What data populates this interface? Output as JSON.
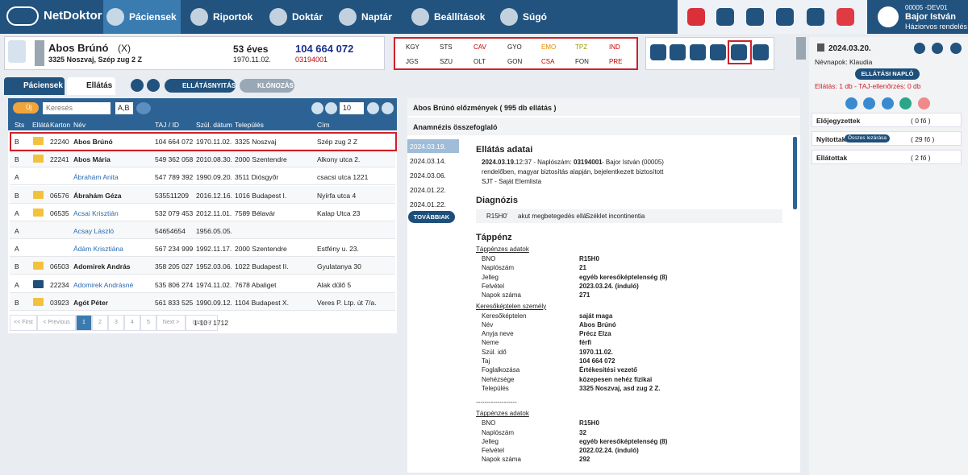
{
  "header": {
    "logo": "NetDoktor",
    "nav": [
      "Páciensek",
      "Riportok",
      "Doktár",
      "Naptár",
      "Beállítások",
      "Súgó"
    ],
    "user": {
      "code": "00005 -DEV01",
      "name": "Bajor István",
      "role": "Háziorvos rendelés"
    }
  },
  "patient": {
    "name": "Abos Brúnó",
    "mark": "(X)",
    "address": "3325 Noszvaj, Szép zug 2 Z",
    "age": "53 éves",
    "birth": "1970.11.02.",
    "taj": "104 664 072",
    "id": "03194001"
  },
  "codes": [
    [
      {
        "label": "KGY",
        "color": "#222222"
      },
      {
        "label": "STS",
        "color": "#222222"
      },
      {
        "label": "CAV",
        "color": "#c40000"
      },
      {
        "label": "GYO",
        "color": "#222222"
      },
      {
        "label": "EMO",
        "color": "#e08a00"
      },
      {
        "label": "TPZ",
        "color": "#9a9a00"
      },
      {
        "label": "IND",
        "color": "#c40000"
      }
    ],
    [
      {
        "label": "JGS",
        "color": "#222222"
      },
      {
        "label": "SZU",
        "color": "#222222"
      },
      {
        "label": "OLT",
        "color": "#222222"
      },
      {
        "label": "GON",
        "color": "#222222"
      },
      {
        "label": "CSA",
        "color": "#c40000"
      },
      {
        "label": "FON",
        "color": "#222222"
      },
      {
        "label": "PRE",
        "color": "#c40000"
      }
    ]
  ],
  "tabs": [
    "Páciensek",
    "Ellátás"
  ],
  "actions": [
    "ELLÁTÁSNYITÁS",
    "KLÓNOZÁS"
  ],
  "list": {
    "new": "Új",
    "search": "Keresés",
    "filter": "A,B",
    "page_size": "10",
    "columns": [
      "Sts",
      "Ellátá",
      "Karton",
      "Név",
      "TAJ / ID",
      "Szül. dátum",
      "Település",
      "Cím"
    ],
    "rows": [
      {
        "sts": "B",
        "folder": "yellow",
        "karton": "22240",
        "name": "Abos Brúnó",
        "taj": "104 664 072",
        "born": "1970.11.02.",
        "city": "3325 Noszvaj",
        "address": "Szép zug 2 Z"
      },
      {
        "sts": "B",
        "folder": "yellow",
        "karton": "22241",
        "name": "Abos Mária",
        "taj": "549 362 058",
        "born": "2010.08.30.",
        "city": "2000 Szentendre",
        "address": "Alkony utca 2."
      },
      {
        "sts": "A",
        "folder": null,
        "karton": null,
        "name": "Ábrahám Anita",
        "taj": "547 789 392",
        "born": "1990.09.20.",
        "city": "3511 Diósgyőr",
        "address": "csacsi utca 1221"
      },
      {
        "sts": "B",
        "folder": "yellow",
        "karton": "06576",
        "name": "Ábrahám Géza",
        "taj": "535511209",
        "born": "2016.12.16.",
        "city": "1016 Budapest I.",
        "address": "Nyírfa utca 4"
      },
      {
        "sts": "A",
        "folder": "yellow",
        "karton": "06535",
        "name": "Acsai Krisztián",
        "taj": "532 079 453",
        "born": "2012.11.01.",
        "city": "7589 Bélavár",
        "address": "Kalap Utca 23"
      },
      {
        "sts": "A",
        "folder": null,
        "karton": null,
        "name": "Acsay László",
        "taj": "54654654",
        "born": "1956.05.05.",
        "city": null,
        "address": null
      },
      {
        "sts": "A",
        "folder": null,
        "karton": null,
        "name": "Ádám Krisztiána",
        "taj": "567 234 999",
        "born": "1992.11.17.",
        "city": "2000 Szentendre",
        "address": "Estfény u. 23."
      },
      {
        "sts": "B",
        "folder": "yellow",
        "karton": "06503",
        "name": "Adomirek András",
        "taj": "358 205 027",
        "born": "1952.03.06.",
        "city": "1022 Budapest II.",
        "address": "Gyulatanya 30"
      },
      {
        "sts": "A",
        "folder": "dark",
        "karton": "22234",
        "name": "Adomirek Andrásné",
        "taj": "535 806 274",
        "born": "1974.11.02.",
        "city": "7678 Abaliget",
        "address": "Alak dűlő 5"
      },
      {
        "sts": "B",
        "folder": "yellow",
        "karton": "03923",
        "name": "Agót Péter",
        "taj": "561 833 525",
        "born": "1990.09.12.",
        "city": "1104 Budapest X.",
        "address": "Veres P. Ltp. út 7/a."
      }
    ],
    "pages": [
      "<< First",
      "< Previous",
      "1",
      "2",
      "3",
      "4",
      "5",
      "Next >",
      "Last >>"
    ],
    "info": "1-10 / 1712"
  },
  "history": {
    "title": "Abos Brúnó előzmények ( 995 db ellátás )",
    "anamnesis": "Anamnézis összefoglaló",
    "dates": [
      "2024.03.19.",
      "2024.03.14.",
      "2024.03.06.",
      "2024.01.22.",
      "2024.01.22."
    ],
    "more": "TOVÁBBIAK"
  },
  "detail": {
    "title": "Ellátás adatai",
    "date": "2024.03.19.",
    "time": "12:37 - Naplószám:",
    "id": "03194001",
    "doctor": "- Bajor István (00005)",
    "place": "rendelőben, magyar biztosítás alapján, bejelentkezett biztosított",
    "list": "SJT - Saját Elemlista",
    "diagnosis_title": "Diagnózis",
    "diagnosis": [
      "R15H0'",
      "akut megbetegedés ellá",
      "Széklet incontinentia"
    ],
    "sick_title": "Táppénz",
    "blocks": [
      {
        "title": "Táppénzes adatok",
        "fields": [
          [
            "BNO",
            "R15H0"
          ],
          [
            "Naplószám",
            "21"
          ],
          [
            "Jelleg",
            "egyéb keresőképtelenség (8)"
          ],
          [
            "Felvétel",
            "2023.03.24. (induló)"
          ],
          [
            "Napok száma",
            "271"
          ]
        ]
      },
      {
        "title": "Keresőképtelen személy",
        "fields": [
          [
            "Keresőképtelen",
            "saját maga"
          ],
          [
            "Név",
            "Abos Brúnó"
          ],
          [
            "Anyja neve",
            "Précz Elza"
          ],
          [
            "Neme",
            "férfi"
          ],
          [
            "Szül. idő",
            "1970.11.02."
          ],
          [
            "Taj",
            "104 664 072"
          ],
          [
            "Foglalkozása",
            "Értékesítési vezető"
          ],
          [
            "Nehézsége",
            "közepesen nehéz fizikai"
          ],
          [
            "Település",
            "3325 Noszvaj, asd zug 2 Z."
          ]
        ]
      },
      {
        "rule": "-------------------"
      },
      {
        "title": "Táppénzes adatok",
        "fields": [
          [
            "BNO",
            "R15H0"
          ],
          [
            "Naplószám",
            "32"
          ],
          [
            "Jelleg",
            "egyéb keresőképtelenség (8)"
          ],
          [
            "Felvétel",
            "2022.02.24. (induló)"
          ],
          [
            "Napok száma",
            "292"
          ]
        ]
      }
    ]
  },
  "sidebar": {
    "date": "2024.03.20.",
    "namedays": "Névnapok: Klaudia",
    "log": "ELLÁTÁSI NAPLÓ",
    "status": "Ellátás: 1 db - TAJ-ellenőrzés: 0 db",
    "groups": [
      {
        "name": "Előjegyzettek",
        "count": "( 0 fő )"
      },
      {
        "name": "Nyitottak",
        "badge": "Összes lezárása",
        "count": "( 29 fő )"
      },
      {
        "name": "Ellátottak",
        "count": "( 2 fő )"
      }
    ]
  }
}
